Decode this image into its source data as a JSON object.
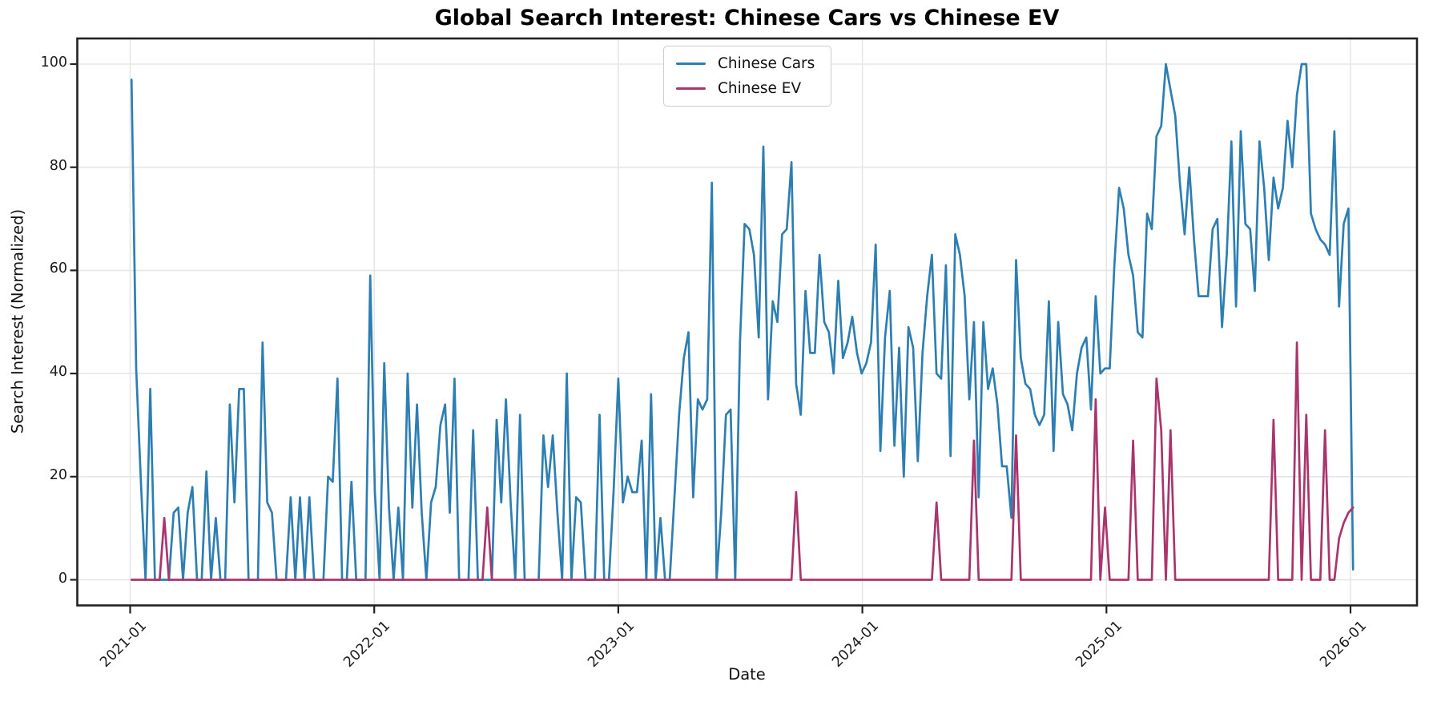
{
  "chart_data": {
    "type": "line",
    "title": "Global Search Interest: Chinese Cars vs Chinese EV",
    "xlabel": "Date",
    "ylabel": "Search Interest (Normalized)",
    "x_start": "2021-01-03",
    "x_interval": "weekly",
    "x_tick_labels": [
      "2021-01",
      "2022-01",
      "2023-01",
      "2024-01",
      "2025-01",
      "2026-01"
    ],
    "y_ticks": [
      0,
      20,
      40,
      60,
      80,
      100
    ],
    "ylim": [
      0,
      100
    ],
    "grid": true,
    "legend_position": "top-center",
    "series": [
      {
        "name": "Chinese Cars",
        "color": "#2d7eb2",
        "values": [
          97,
          41,
          19,
          0,
          37,
          0,
          0,
          0,
          0,
          13,
          14,
          0,
          13,
          18,
          0,
          0,
          21,
          0,
          12,
          0,
          0,
          34,
          15,
          37,
          37,
          0,
          0,
          0,
          46,
          15,
          13,
          0,
          0,
          0,
          16,
          0,
          16,
          0,
          16,
          0,
          0,
          0,
          20,
          19,
          39,
          0,
          0,
          19,
          0,
          0,
          0,
          59,
          17,
          0,
          42,
          14,
          0,
          14,
          0,
          40,
          14,
          34,
          13,
          0,
          15,
          18,
          30,
          34,
          13,
          39,
          0,
          0,
          0,
          29,
          0,
          0,
          0,
          0,
          31,
          15,
          35,
          15,
          0,
          32,
          0,
          0,
          0,
          0,
          28,
          18,
          28,
          13,
          0,
          40,
          0,
          16,
          15,
          0,
          0,
          0,
          32,
          0,
          0,
          17,
          39,
          15,
          20,
          17,
          17,
          27,
          0,
          36,
          0,
          12,
          0,
          0,
          16,
          32,
          43,
          48,
          16,
          35,
          33,
          35,
          77,
          0,
          13,
          32,
          33,
          0,
          46,
          69,
          68,
          63,
          47,
          84,
          35,
          54,
          50,
          67,
          68,
          81,
          38,
          32,
          56,
          44,
          44,
          63,
          50,
          48,
          40,
          58,
          43,
          46,
          51,
          44,
          40,
          42,
          46,
          65,
          25,
          47,
          56,
          26,
          45,
          20,
          49,
          45,
          23,
          44,
          55,
          63,
          40,
          39,
          61,
          24,
          67,
          63,
          55,
          35,
          50,
          16,
          50,
          37,
          41,
          34,
          22,
          22,
          12,
          62,
          43,
          38,
          37,
          32,
          30,
          32,
          54,
          25,
          50,
          36,
          34,
          29,
          40,
          45,
          47,
          33,
          55,
          40,
          41,
          41,
          61,
          76,
          72,
          63,
          59,
          48,
          47,
          71,
          68,
          86,
          88,
          100,
          95,
          90,
          77,
          67,
          80,
          66,
          55,
          55,
          55,
          68,
          70,
          49,
          63,
          85,
          53,
          87,
          69,
          68,
          56,
          85,
          76,
          62,
          78,
          72,
          76,
          89,
          80,
          94,
          100,
          100,
          71,
          68,
          66,
          65,
          63,
          87,
          53,
          69,
          72,
          2
        ]
      },
      {
        "name": "Chinese EV",
        "color": "#aa356c",
        "values": [
          0,
          0,
          0,
          0,
          0,
          0,
          0,
          12,
          0,
          0,
          0,
          0,
          0,
          0,
          0,
          0,
          0,
          0,
          0,
          0,
          0,
          0,
          0,
          0,
          0,
          0,
          0,
          0,
          0,
          0,
          0,
          0,
          0,
          0,
          0,
          0,
          0,
          0,
          0,
          0,
          0,
          0,
          0,
          0,
          0,
          0,
          0,
          0,
          0,
          0,
          0,
          0,
          0,
          0,
          0,
          0,
          0,
          0,
          0,
          0,
          0,
          0,
          0,
          0,
          0,
          0,
          0,
          0,
          0,
          0,
          0,
          0,
          0,
          0,
          0,
          0,
          14,
          0,
          0,
          0,
          0,
          0,
          0,
          0,
          0,
          0,
          0,
          0,
          0,
          0,
          0,
          0,
          0,
          0,
          0,
          0,
          0,
          0,
          0,
          0,
          0,
          0,
          0,
          0,
          0,
          0,
          0,
          0,
          0,
          0,
          0,
          0,
          0,
          0,
          0,
          0,
          0,
          0,
          0,
          0,
          0,
          0,
          0,
          0,
          0,
          0,
          0,
          0,
          0,
          0,
          0,
          0,
          0,
          0,
          0,
          0,
          0,
          0,
          0,
          0,
          0,
          0,
          17,
          0,
          0,
          0,
          0,
          0,
          0,
          0,
          0,
          0,
          0,
          0,
          0,
          0,
          0,
          0,
          0,
          0,
          0,
          0,
          0,
          0,
          0,
          0,
          0,
          0,
          0,
          0,
          0,
          0,
          15,
          0,
          0,
          0,
          0,
          0,
          0,
          0,
          27,
          0,
          0,
          0,
          0,
          0,
          0,
          0,
          0,
          28,
          0,
          0,
          0,
          0,
          0,
          0,
          0,
          0,
          0,
          0,
          0,
          0,
          0,
          0,
          0,
          0,
          35,
          0,
          14,
          0,
          0,
          0,
          0,
          0,
          27,
          0,
          0,
          0,
          0,
          39,
          29,
          0,
          29,
          0,
          0,
          0,
          0,
          0,
          0,
          0,
          0,
          0,
          0,
          0,
          0,
          0,
          0,
          0,
          0,
          0,
          0,
          0,
          0,
          0,
          31,
          0,
          0,
          0,
          0,
          46,
          0,
          32,
          0,
          0,
          0,
          29,
          0,
          0,
          8,
          11,
          13,
          14
        ]
      }
    ]
  }
}
